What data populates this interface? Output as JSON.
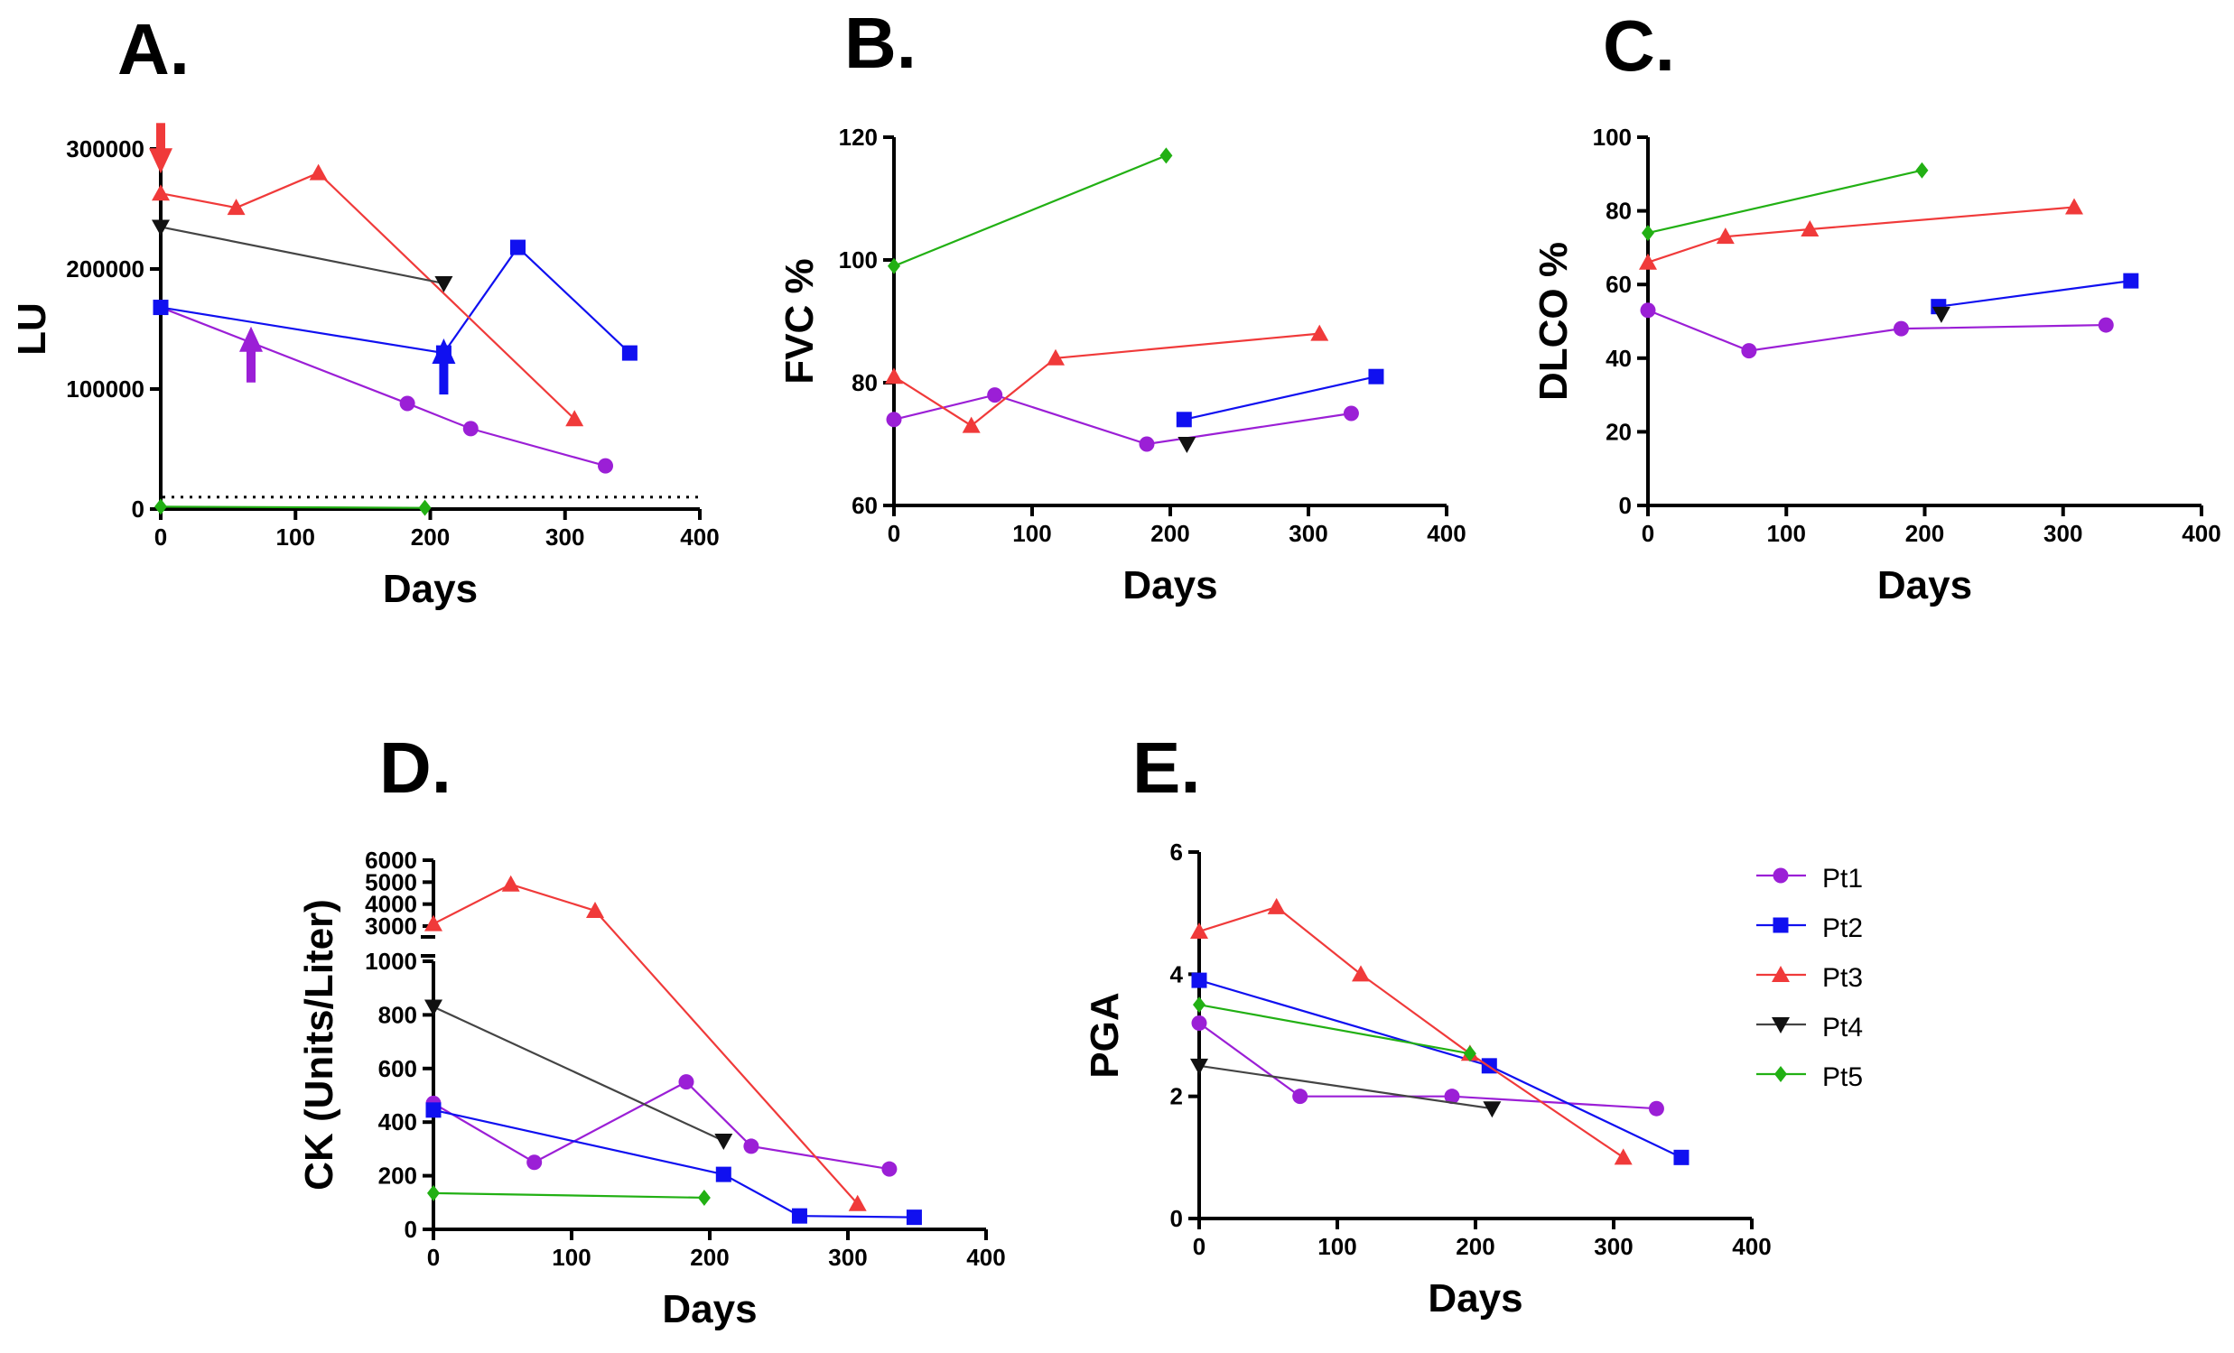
{
  "figure": {
    "legend": [
      {
        "id": "Pt1",
        "label": "Pt1",
        "color": "#9B1FD6",
        "marker": "circle"
      },
      {
        "id": "Pt2",
        "label": "Pt2",
        "color": "#1010F0",
        "marker": "square"
      },
      {
        "id": "Pt3",
        "label": "Pt3",
        "color": "#F03A3A",
        "marker": "triangle-up"
      },
      {
        "id": "Pt4",
        "label": "Pt4",
        "color": "#111111",
        "line_color": "#444444",
        "marker": "triangle-down"
      },
      {
        "id": "Pt5",
        "label": "Pt5",
        "color": "#22B014",
        "marker": "diamond"
      }
    ]
  },
  "chart_data": [
    {
      "panel": "A.",
      "type": "line",
      "xlabel": "Days",
      "ylabel": "LU",
      "xlim": [
        0,
        400
      ],
      "ylim": [
        0,
        300000
      ],
      "xticks": [
        0,
        100,
        200,
        300,
        400
      ],
      "yticks": [
        0,
        100000,
        200000,
        300000
      ],
      "reference_line": {
        "y": 10000,
        "style": "dotted"
      },
      "series": [
        {
          "name": "Pt1",
          "x": [
            0,
            183,
            230,
            330
          ],
          "y": [
            168000,
            88000,
            67000,
            36000
          ]
        },
        {
          "name": "Pt2",
          "x": [
            0,
            210,
            265,
            348
          ],
          "y": [
            168000,
            130000,
            218000,
            130000
          ]
        },
        {
          "name": "Pt3",
          "x": [
            0,
            56,
            117,
            307
          ],
          "y": [
            263000,
            251000,
            280000,
            75000
          ]
        },
        {
          "name": "Pt4",
          "x": [
            0,
            210
          ],
          "y": [
            235000,
            188000
          ]
        },
        {
          "name": "Pt5",
          "x": [
            0,
            196
          ],
          "y": [
            2000,
            1000
          ]
        }
      ],
      "annotations": [
        {
          "type": "arrow-down",
          "x": 0,
          "y": 290000,
          "color": "#F03A3A"
        },
        {
          "type": "arrow-up",
          "x": 67,
          "y": 125000,
          "color": "#9B1FD6"
        },
        {
          "type": "arrow-up",
          "x": 210,
          "y": 115000,
          "color": "#1010F0"
        }
      ]
    },
    {
      "panel": "B.",
      "type": "line",
      "xlabel": "Days",
      "ylabel": "FVC  %",
      "xlim": [
        0,
        400
      ],
      "ylim": [
        60,
        120
      ],
      "xticks": [
        0,
        100,
        200,
        300,
        400
      ],
      "yticks": [
        60,
        80,
        100,
        120
      ],
      "series": [
        {
          "name": "Pt1",
          "x": [
            0,
            73,
            183,
            331
          ],
          "y": [
            74,
            78,
            70,
            75
          ]
        },
        {
          "name": "Pt2",
          "x": [
            210,
            349
          ],
          "y": [
            74,
            81
          ]
        },
        {
          "name": "Pt3",
          "x": [
            0,
            56,
            117,
            308
          ],
          "y": [
            81,
            73,
            84,
            88
          ]
        },
        {
          "name": "Pt4",
          "x": [
            212
          ],
          "y": [
            70
          ]
        },
        {
          "name": "Pt5",
          "x": [
            0,
            197
          ],
          "y": [
            99,
            117
          ]
        }
      ]
    },
    {
      "panel": "C.",
      "type": "line",
      "xlabel": "Days",
      "ylabel": "DLCO  %",
      "xlim": [
        0,
        400
      ],
      "ylim": [
        0,
        100
      ],
      "xticks": [
        0,
        100,
        200,
        300,
        400
      ],
      "yticks": [
        0,
        20,
        40,
        60,
        80,
        100
      ],
      "series": [
        {
          "name": "Pt1",
          "x": [
            0,
            73,
            183,
            331
          ],
          "y": [
            53,
            42,
            48,
            49
          ]
        },
        {
          "name": "Pt2",
          "x": [
            210,
            349
          ],
          "y": [
            54,
            61
          ]
        },
        {
          "name": "Pt3",
          "x": [
            0,
            56,
            117,
            308
          ],
          "y": [
            66,
            73,
            75,
            81
          ]
        },
        {
          "name": "Pt4",
          "x": [
            212
          ],
          "y": [
            52
          ]
        },
        {
          "name": "Pt5",
          "x": [
            0,
            198
          ],
          "y": [
            74,
            91
          ]
        }
      ]
    },
    {
      "panel": "D.",
      "type": "line",
      "xlabel": "Days",
      "ylabel": "CK (Units/Liter)",
      "xlim": [
        0,
        400
      ],
      "broken_y_axis": true,
      "ylim_lower": [
        0,
        1000
      ],
      "ylim_upper": [
        3000,
        6000
      ],
      "xticks": [
        0,
        100,
        200,
        300,
        400
      ],
      "yticks_lower": [
        0,
        200,
        400,
        600,
        800,
        1000
      ],
      "yticks_upper": [
        3000,
        4000,
        5000,
        6000
      ],
      "series": [
        {
          "name": "Pt1",
          "x": [
            0,
            73,
            183,
            230,
            330
          ],
          "y": [
            470,
            250,
            550,
            310,
            225
          ]
        },
        {
          "name": "Pt2",
          "x": [
            0,
            210,
            265,
            348
          ],
          "y": [
            445,
            205,
            50,
            45
          ]
        },
        {
          "name": "Pt3",
          "x": [
            0,
            56,
            117,
            307
          ],
          "y": [
            3100,
            4900,
            3700,
            95
          ]
        },
        {
          "name": "Pt4",
          "x": [
            0,
            210
          ],
          "y": [
            830,
            330
          ]
        },
        {
          "name": "Pt5",
          "x": [
            0,
            196
          ],
          "y": [
            135,
            118
          ]
        }
      ]
    },
    {
      "panel": "E.",
      "type": "line",
      "xlabel": "Days",
      "ylabel": "PGA",
      "xlim": [
        0,
        400
      ],
      "ylim": [
        0,
        6
      ],
      "xticks": [
        0,
        100,
        200,
        300,
        400
      ],
      "yticks": [
        0,
        2,
        4,
        6
      ],
      "series": [
        {
          "name": "Pt1",
          "x": [
            0,
            73,
            183,
            331
          ],
          "y": [
            3.2,
            2.0,
            2.0,
            1.8
          ]
        },
        {
          "name": "Pt2",
          "x": [
            0,
            210,
            349
          ],
          "y": [
            3.9,
            2.5,
            1.0
          ]
        },
        {
          "name": "Pt3",
          "x": [
            0,
            56,
            117,
            196,
            307
          ],
          "y": [
            4.7,
            5.1,
            4.0,
            2.7,
            1.0
          ]
        },
        {
          "name": "Pt4",
          "x": [
            0,
            212
          ],
          "y": [
            2.5,
            1.8
          ]
        },
        {
          "name": "Pt5",
          "x": [
            0,
            196
          ],
          "y": [
            3.5,
            2.7
          ]
        }
      ]
    }
  ]
}
